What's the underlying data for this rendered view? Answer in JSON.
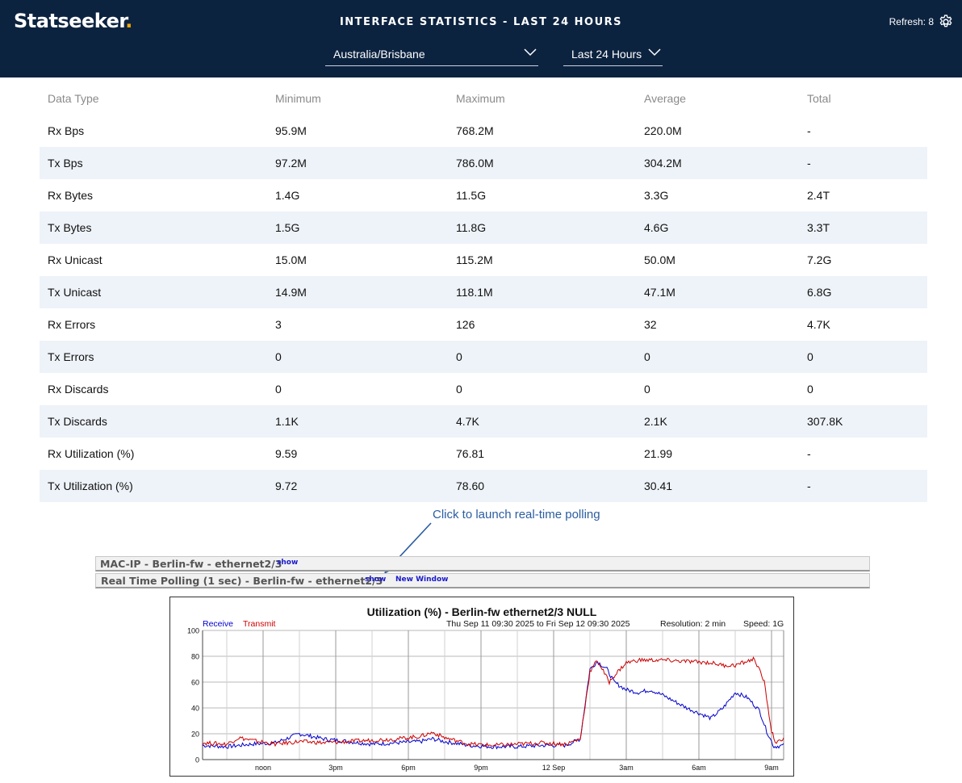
{
  "header": {
    "logo": "Statseeker",
    "logo_dot": ".",
    "title": "INTERFACE STATISTICS - LAST 24 HOURS",
    "refresh_label": "Refresh: 8",
    "timezone": "Australia/Brisbane",
    "time_range": "Last 24 Hours"
  },
  "table": {
    "headers": [
      "Data Type",
      "Minimum",
      "Maximum",
      "Average",
      "Total"
    ],
    "rows": [
      [
        "Rx Bps",
        "95.9M",
        "768.2M",
        "220.0M",
        "-"
      ],
      [
        "Tx Bps",
        "97.2M",
        "786.0M",
        "304.2M",
        "-"
      ],
      [
        "Rx Bytes",
        "1.4G",
        "11.5G",
        "3.3G",
        "2.4T"
      ],
      [
        "Tx Bytes",
        "1.5G",
        "11.8G",
        "4.6G",
        "3.3T"
      ],
      [
        "Rx Unicast",
        "15.0M",
        "115.2M",
        "50.0M",
        "7.2G"
      ],
      [
        "Tx Unicast",
        "14.9M",
        "118.1M",
        "47.1M",
        "6.8G"
      ],
      [
        "Rx Errors",
        "3",
        "126",
        "32",
        "4.7K"
      ],
      [
        "Tx Errors",
        "0",
        "0",
        "0",
        "0"
      ],
      [
        "Rx Discards",
        "0",
        "0",
        "0",
        "0"
      ],
      [
        "Tx Discards",
        "1.1K",
        "4.7K",
        "2.1K",
        "307.8K"
      ],
      [
        "Rx Utilization (%)",
        "9.59",
        "76.81",
        "21.99",
        "-"
      ],
      [
        "Tx Utilization (%)",
        "9.72",
        "78.60",
        "30.41",
        "-"
      ]
    ]
  },
  "annotation": "Click to launch real-time polling",
  "sections": [
    {
      "title": "MAC-IP - Berlin-fw - ethernet2/3",
      "show": "show"
    },
    {
      "title": "Real Time Polling (1 sec) - Berlin-fw - ethernet2/3",
      "show": "show",
      "new_window": "New Window"
    }
  ],
  "chart_data": {
    "type": "line",
    "title": "Utilization (%) - Berlin-fw  ethernet2/3  NULL",
    "subtitle": "Thu Sep 11 09:30 2025  to  Fri Sep 12 09:30 2025",
    "resolution": "Resolution: 2 min",
    "speed": "Speed: 1G",
    "ylim": [
      0,
      100
    ],
    "yticks": [
      0,
      20,
      40,
      60,
      80,
      100
    ],
    "xlim": [
      0,
      24
    ],
    "xticks": [
      {
        "x": 2.5,
        "label": "noon"
      },
      {
        "x": 5.5,
        "label": "3pm"
      },
      {
        "x": 8.5,
        "label": "6pm"
      },
      {
        "x": 11.5,
        "label": "9pm"
      },
      {
        "x": 14.5,
        "label": "12 Sep"
      },
      {
        "x": 17.5,
        "label": "3am"
      },
      {
        "x": 20.5,
        "label": "6am"
      },
      {
        "x": 23.5,
        "label": "9am"
      }
    ],
    "legend_position": "top-left",
    "grid": true,
    "x_units": "hours since Thu Sep 11 09:30",
    "series": [
      {
        "name": "Receive",
        "color": "#0000cc",
        "points": [
          [
            0,
            11
          ],
          [
            1,
            10
          ],
          [
            2,
            12
          ],
          [
            3,
            13
          ],
          [
            4,
            20
          ],
          [
            5,
            16
          ],
          [
            6,
            14
          ],
          [
            7,
            12
          ],
          [
            8,
            13
          ],
          [
            9,
            14
          ],
          [
            9.5,
            16
          ],
          [
            10,
            14
          ],
          [
            11,
            11
          ],
          [
            12,
            10
          ],
          [
            13,
            10
          ],
          [
            14,
            11
          ],
          [
            15,
            11
          ],
          [
            15.6,
            16
          ],
          [
            16,
            70
          ],
          [
            16.3,
            76
          ],
          [
            16.7,
            70
          ],
          [
            17,
            60
          ],
          [
            17.5,
            54
          ],
          [
            18,
            52
          ],
          [
            18.5,
            54
          ],
          [
            19,
            50
          ],
          [
            20,
            40
          ],
          [
            21,
            32
          ],
          [
            21.5,
            40
          ],
          [
            22,
            52
          ],
          [
            22.5,
            48
          ],
          [
            23,
            38
          ],
          [
            23.3,
            22
          ],
          [
            23.6,
            10
          ],
          [
            24,
            11
          ]
        ]
      },
      {
        "name": "Transmit",
        "color": "#cc0000",
        "points": [
          [
            0,
            13
          ],
          [
            1,
            12
          ],
          [
            1.5,
            17
          ],
          [
            2,
            15
          ],
          [
            3,
            12
          ],
          [
            4,
            14
          ],
          [
            5,
            13
          ],
          [
            6,
            14
          ],
          [
            7,
            15
          ],
          [
            8,
            16
          ],
          [
            9,
            18
          ],
          [
            9.5,
            21
          ],
          [
            10,
            17
          ],
          [
            11,
            12
          ],
          [
            12,
            11
          ],
          [
            13,
            12
          ],
          [
            14,
            13
          ],
          [
            15,
            12
          ],
          [
            15.6,
            16
          ],
          [
            16,
            68
          ],
          [
            16.3,
            77
          ],
          [
            16.8,
            60
          ],
          [
            17,
            65
          ],
          [
            17.5,
            75
          ],
          [
            18,
            77
          ],
          [
            19,
            77
          ],
          [
            20,
            76
          ],
          [
            21,
            75
          ],
          [
            21.5,
            73
          ],
          [
            22,
            73
          ],
          [
            22.8,
            78
          ],
          [
            23.2,
            60
          ],
          [
            23.5,
            22
          ],
          [
            23.7,
            12
          ],
          [
            24,
            17
          ]
        ]
      }
    ]
  }
}
